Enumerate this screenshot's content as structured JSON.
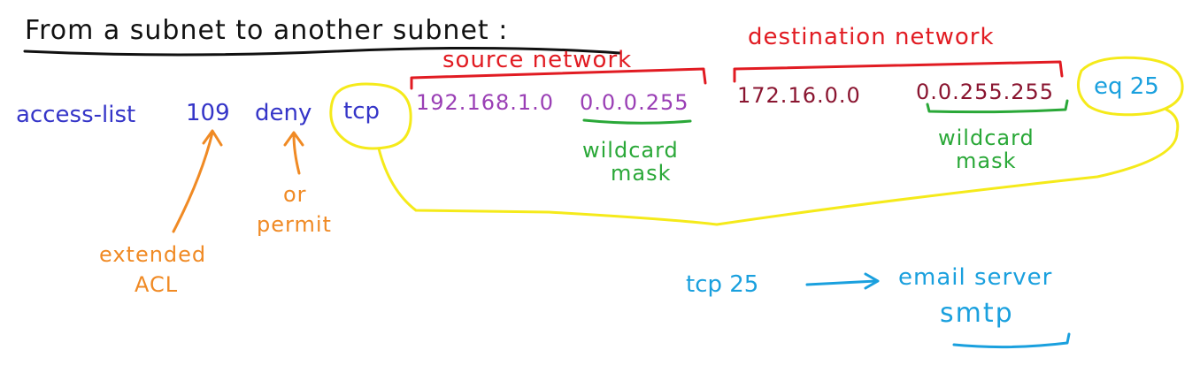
{
  "title": "From a subnet to another subnet :",
  "colors": {
    "black": "#111111",
    "blue": "#3535c8",
    "purple": "#9a3fb5",
    "maroon": "#8a1530",
    "red": "#e11b22",
    "orange": "#f08a24",
    "green": "#2aa838",
    "cyan": "#1aa0de",
    "yellow": "#f5ea1a"
  },
  "command": {
    "keyword": "access-list",
    "number": "109",
    "action": "deny",
    "protocol": "tcp",
    "source_ip": "192.168.1.0",
    "source_wildcard": "0.0.0.255",
    "dest_ip": "172.16.0.0",
    "dest_wildcard": "0.0.255.255",
    "port_match": "eq 25"
  },
  "annotations": {
    "source_network": "source network",
    "destination_network": "destination network",
    "wildcard_mask_1_line1": "wildcard",
    "wildcard_mask_1_line2": "mask",
    "wildcard_mask_2_line1": "wildcard",
    "wildcard_mask_2_line2": "mask",
    "extended_line1": "extended",
    "extended_line2": "ACL",
    "or_line1": "or",
    "or_line2": "permit"
  },
  "note": {
    "port": "tcp 25",
    "service": "email server",
    "protocol_name": "smtp"
  }
}
